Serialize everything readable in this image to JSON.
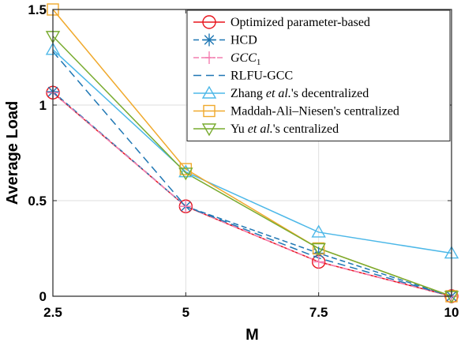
{
  "chart_data": {
    "type": "line",
    "xlabel": "M",
    "ylabel": "Average Load",
    "x": [
      2.5,
      5,
      7.5,
      10
    ],
    "xlim": [
      2.5,
      10
    ],
    "ylim": [
      0,
      1.5
    ],
    "xticks": [
      "2.5",
      "5",
      "7.5",
      "10"
    ],
    "yticks": [
      "0",
      "0.5",
      "1",
      "1.5"
    ],
    "grid": true,
    "legend_position": "top-right",
    "series": [
      {
        "name": "Optimized parameter-based",
        "marker": "circle",
        "color": "#e8141c",
        "dash": "solid",
        "values": [
          1.065,
          0.47,
          0.18,
          0.0
        ]
      },
      {
        "name": "HCD",
        "marker": "asterisk",
        "color": "#1f77b4",
        "dash": "dashed",
        "values": [
          1.07,
          0.47,
          0.225,
          0.0
        ]
      },
      {
        "name": "GCC1",
        "display_base": "GCC",
        "display_sub": "1",
        "italic": true,
        "marker": "plus",
        "color": "#f47fb0",
        "dash": "dashdot",
        "values": [
          1.065,
          0.47,
          0.18,
          0.0
        ]
      },
      {
        "name": "RLFU-GCC",
        "marker": "none",
        "color": "#1f77b4",
        "dash": "longdash",
        "values": [
          1.28,
          0.47,
          0.2,
          0.0
        ]
      },
      {
        "name": "Zhang et al.'s decentralized",
        "display_parts": [
          [
            "Zhang ",
            false
          ],
          [
            "et al.",
            true
          ],
          [
            "'s decentralized",
            false
          ]
        ],
        "marker": "triangle-up",
        "color": "#4db8e8",
        "dash": "solid",
        "values": [
          1.29,
          0.65,
          0.335,
          0.225
        ]
      },
      {
        "name": "Maddah-Ali–Niesen's centralized",
        "marker": "square",
        "color": "#f0a92c",
        "dash": "solid",
        "values": [
          1.5,
          0.665,
          0.25,
          0.0
        ]
      },
      {
        "name": "Yu et al.'s centralized",
        "display_parts": [
          [
            "Yu ",
            false
          ],
          [
            "et al.",
            true
          ],
          [
            "'s centralized",
            false
          ]
        ],
        "marker": "triangle-down",
        "color": "#78ab2f",
        "dash": "solid",
        "values": [
          1.36,
          0.645,
          0.25,
          0.0
        ]
      }
    ]
  }
}
